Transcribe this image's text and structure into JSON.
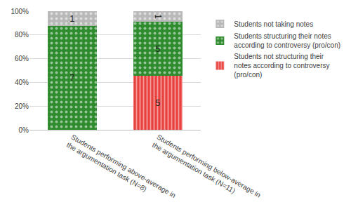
{
  "chart_data": {
    "type": "bar",
    "stacked": true,
    "categories": [
      "Students performing above-average in the argumentation task (N=8)",
      "Students performing below-average in the argumentation task (N=11)"
    ],
    "series": [
      {
        "name": "Students not structuring their notes according to controversy (pro/con)",
        "color": "#e8403c",
        "marker": "stripes",
        "values": [
          0,
          45.45
        ],
        "counts": [
          null,
          5
        ]
      },
      {
        "name": "Students structuring their notes according to controversy (pro/con)",
        "color": "#2e8b2e",
        "marker": "dots",
        "values": [
          87.5,
          45.45
        ],
        "counts": [
          7,
          5
        ]
      },
      {
        "name": "Students not taking notes",
        "color": "#b8b8b8",
        "marker": "dots",
        "values": [
          12.5,
          9.1
        ],
        "counts": [
          1,
          1
        ]
      }
    ],
    "ylim": [
      0,
      100
    ],
    "yticks": [
      {
        "value": 0,
        "label": "0%"
      },
      {
        "value": 20,
        "label": "20%"
      },
      {
        "value": 40,
        "label": "40%"
      },
      {
        "value": 60,
        "label": "60%"
      },
      {
        "value": 80,
        "label": "80%"
      },
      {
        "value": 100,
        "label": "100%"
      }
    ],
    "grid": true,
    "legend": "right"
  }
}
